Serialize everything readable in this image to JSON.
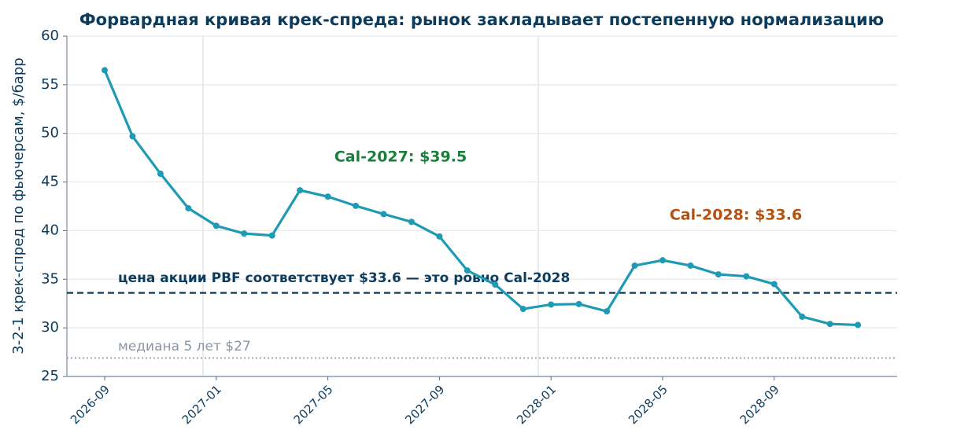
{
  "chart_data": {
    "type": "line",
    "title": "Форвардная кривая крек-спреда: рынок закладывает постепенную нормализацию",
    "y_label": "3-2-1 крек-спред по фьючерсам, $/барр",
    "x": [
      "2026-09",
      "2026-10",
      "2026-11",
      "2026-12",
      "2027-01",
      "2027-02",
      "2027-03",
      "2027-04",
      "2027-05",
      "2027-06",
      "2027-07",
      "2027-08",
      "2027-09",
      "2027-10",
      "2027-11",
      "2027-12",
      "2028-01",
      "2028-02",
      "2028-03",
      "2028-04",
      "2028-05",
      "2028-06",
      "2028-07",
      "2028-08",
      "2028-09",
      "2028-10",
      "2028-11",
      "2028-12"
    ],
    "series": [
      {
        "color": "#1f9ab5",
        "values": [
          56.5,
          49.7,
          45.85,
          42.3,
          40.5,
          39.7,
          39.5,
          44.15,
          43.5,
          42.55,
          41.7,
          40.9,
          39.4,
          35.9,
          34.45,
          31.95,
          32.4,
          32.45,
          31.7,
          36.4,
          36.95,
          36.4,
          35.5,
          35.3,
          34.5,
          31.15,
          30.4,
          30.3
        ]
      }
    ],
    "xticks": [
      "2026-09",
      "2027-01",
      "2027-05",
      "2027-09",
      "2028-01",
      "2028-05",
      "2028-09"
    ],
    "ylim": [
      25,
      60
    ],
    "yticks": [
      25,
      30,
      35,
      40,
      45,
      50,
      55,
      60
    ],
    "grid": true,
    "reference_lines": [
      {
        "value": 33.6,
        "label": "цена акции PBF соответствует $33.6 — это ровно Cal-2028",
        "color": "#0d3b5c",
        "style": "dashed"
      },
      {
        "value": 26.9,
        "label": "медиана 5 лет $27",
        "color": "#9a9a9a",
        "style": "dotted"
      }
    ],
    "annotations": [
      {
        "text": "Cal-2027: $39.5",
        "color": "#1a7f3c"
      },
      {
        "text": "Cal-2028: $33.6",
        "color": "#b5500f"
      }
    ]
  }
}
